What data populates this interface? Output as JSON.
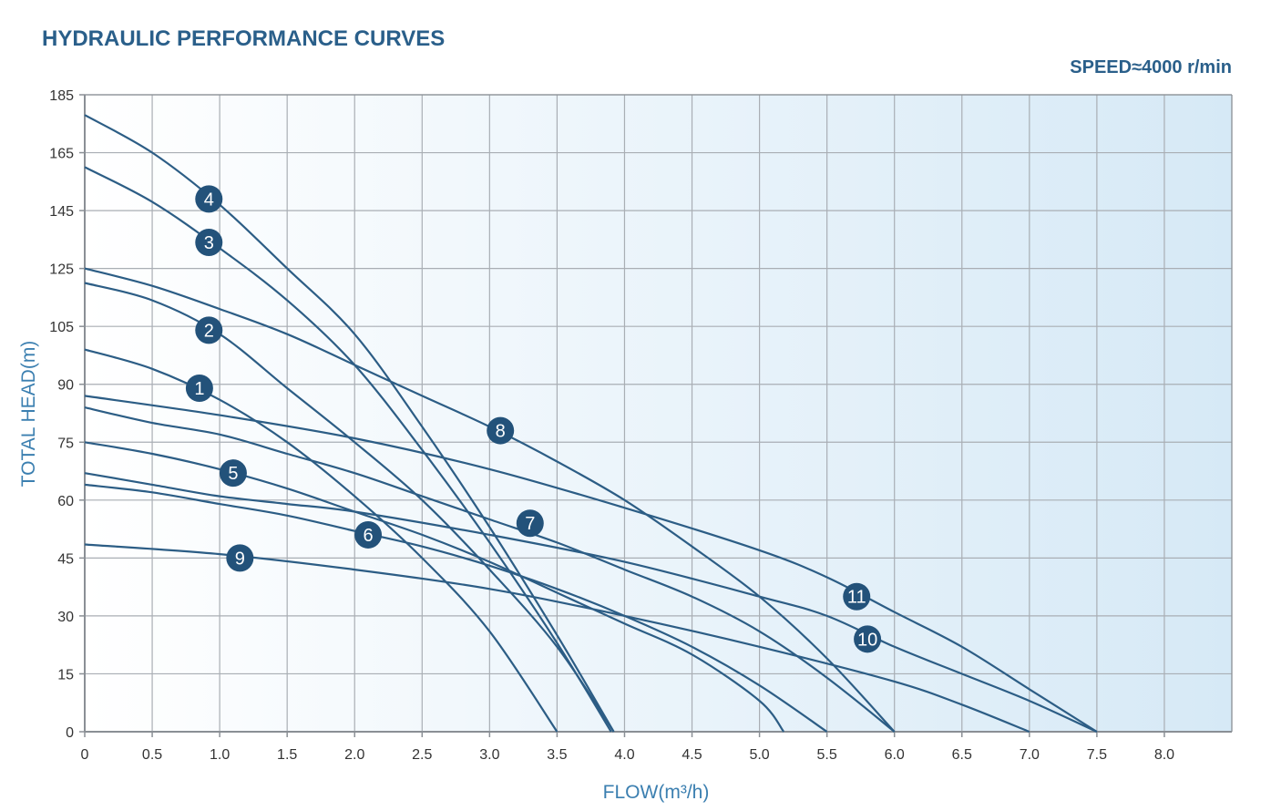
{
  "chart_data": {
    "type": "line",
    "title": "HYDRAULIC PERFORMANCE CURVES",
    "subtitle": "SPEED≈4000 r/min",
    "xlabel": "FLOW(m³/h)",
    "ylabel": "TOTAL HEAD(m)",
    "xlim": [
      0,
      8.5
    ],
    "ylim": [
      0,
      185
    ],
    "x_ticks": [
      "0",
      "0.5",
      "1.0",
      "1.5",
      "2.0",
      "2.5",
      "3.0",
      "3.5",
      "4.0",
      "4.5",
      "5.0",
      "5.5",
      "6.0",
      "6.5",
      "7.0",
      "7.5",
      "8.0"
    ],
    "y_ticks": [
      "0",
      "15",
      "30",
      "45",
      "60",
      "75",
      "90",
      "105",
      "125",
      "145",
      "165",
      "185"
    ],
    "grid": true,
    "colors": {
      "curve": "#2c5d85",
      "badge": "#23527a",
      "grid": "#a9aeb4",
      "axis": "#8a8f95",
      "bg_start": "#ffffff",
      "bg_end": "#d6e9f6"
    },
    "series": [
      {
        "name": "1",
        "label_at": [
          0.85,
          89
        ],
        "points": [
          [
            0,
            99
          ],
          [
            0.5,
            94
          ],
          [
            1.0,
            86
          ],
          [
            1.5,
            75
          ],
          [
            2.0,
            61
          ],
          [
            2.5,
            45
          ],
          [
            3.0,
            26
          ],
          [
            3.5,
            0
          ]
        ]
      },
      {
        "name": "2",
        "label_at": [
          0.92,
          104
        ],
        "points": [
          [
            0,
            120
          ],
          [
            0.5,
            114
          ],
          [
            1.0,
            103
          ],
          [
            1.5,
            89
          ],
          [
            2.0,
            75
          ],
          [
            2.5,
            60
          ],
          [
            3.0,
            42
          ],
          [
            3.5,
            22
          ],
          [
            3.92,
            0
          ]
        ]
      },
      {
        "name": "3",
        "label_at": [
          0.92,
          134
        ],
        "points": [
          [
            0,
            160
          ],
          [
            0.5,
            148
          ],
          [
            1.0,
            132
          ],
          [
            1.5,
            114
          ],
          [
            2.0,
            95
          ],
          [
            2.5,
            73
          ],
          [
            3.0,
            49
          ],
          [
            3.5,
            23
          ],
          [
            3.9,
            0
          ]
        ]
      },
      {
        "name": "4",
        "label_at": [
          0.92,
          149
        ],
        "points": [
          [
            0,
            178
          ],
          [
            0.5,
            165
          ],
          [
            1.0,
            147
          ],
          [
            1.5,
            125
          ],
          [
            2.0,
            103
          ],
          [
            2.5,
            79
          ],
          [
            3.0,
            53
          ],
          [
            3.5,
            25
          ],
          [
            3.92,
            0
          ]
        ]
      },
      {
        "name": "5",
        "label_at": [
          1.1,
          67
        ],
        "points": [
          [
            0,
            75
          ],
          [
            0.5,
            72
          ],
          [
            1.0,
            68
          ],
          [
            1.5,
            63
          ],
          [
            2.0,
            57
          ],
          [
            2.5,
            51
          ],
          [
            3.0,
            44
          ],
          [
            3.5,
            36
          ],
          [
            4.0,
            28
          ],
          [
            4.5,
            20
          ],
          [
            5.0,
            8
          ],
          [
            5.18,
            0
          ]
        ]
      },
      {
        "name": "6",
        "label_at": [
          2.1,
          51
        ],
        "points": [
          [
            0,
            64
          ],
          [
            0.5,
            62
          ],
          [
            1.0,
            59
          ],
          [
            1.5,
            56
          ],
          [
            2.0,
            52
          ],
          [
            2.5,
            48
          ],
          [
            3.0,
            43
          ],
          [
            3.5,
            37
          ],
          [
            4.0,
            30
          ],
          [
            4.5,
            22
          ],
          [
            5.0,
            12
          ],
          [
            5.5,
            0
          ]
        ]
      },
      {
        "name": "7",
        "label_at": [
          3.3,
          54
        ],
        "points": [
          [
            0,
            84
          ],
          [
            0.5,
            80
          ],
          [
            1.0,
            77
          ],
          [
            1.5,
            72
          ],
          [
            2.0,
            67
          ],
          [
            2.5,
            61
          ],
          [
            3.0,
            55
          ],
          [
            3.5,
            49
          ],
          [
            4.0,
            42
          ],
          [
            4.5,
            35
          ],
          [
            5.0,
            26
          ],
          [
            5.5,
            14
          ],
          [
            6.0,
            0
          ]
        ]
      },
      {
        "name": "8",
        "label_at": [
          3.08,
          78
        ],
        "points": [
          [
            0,
            125
          ],
          [
            0.5,
            119
          ],
          [
            1.0,
            111
          ],
          [
            1.5,
            103
          ],
          [
            2.0,
            95
          ],
          [
            2.5,
            87
          ],
          [
            3.0,
            79
          ],
          [
            3.5,
            70
          ],
          [
            4.0,
            60
          ],
          [
            4.5,
            48
          ],
          [
            5.0,
            35
          ],
          [
            5.5,
            19
          ],
          [
            6.0,
            0
          ]
        ]
      },
      {
        "name": "9",
        "label_at": [
          1.15,
          45
        ],
        "points": [
          [
            0,
            48.5
          ],
          [
            1.0,
            46
          ],
          [
            2.0,
            42
          ],
          [
            3.0,
            37
          ],
          [
            4.0,
            30
          ],
          [
            5.0,
            22
          ],
          [
            6.0,
            13
          ],
          [
            6.5,
            7
          ],
          [
            7.0,
            0
          ]
        ]
      },
      {
        "name": "10",
        "label_at": [
          5.8,
          24
        ],
        "points": [
          [
            0,
            67
          ],
          [
            0.5,
            64
          ],
          [
            1.0,
            61
          ],
          [
            1.5,
            59
          ],
          [
            2.0,
            57
          ],
          [
            3.0,
            51
          ],
          [
            4.0,
            44
          ],
          [
            5.0,
            35
          ],
          [
            5.5,
            30
          ],
          [
            6.0,
            22
          ],
          [
            6.5,
            15
          ],
          [
            7.0,
            8
          ],
          [
            7.5,
            0
          ]
        ]
      },
      {
        "name": "11",
        "label_at": [
          5.72,
          35
        ],
        "points": [
          [
            0,
            87
          ],
          [
            1.0,
            82
          ],
          [
            2.0,
            76
          ],
          [
            3.0,
            68
          ],
          [
            4.0,
            58
          ],
          [
            5.0,
            47
          ],
          [
            5.5,
            40
          ],
          [
            6.0,
            31
          ],
          [
            6.5,
            22
          ],
          [
            7.0,
            11
          ],
          [
            7.5,
            0
          ]
        ]
      }
    ]
  }
}
